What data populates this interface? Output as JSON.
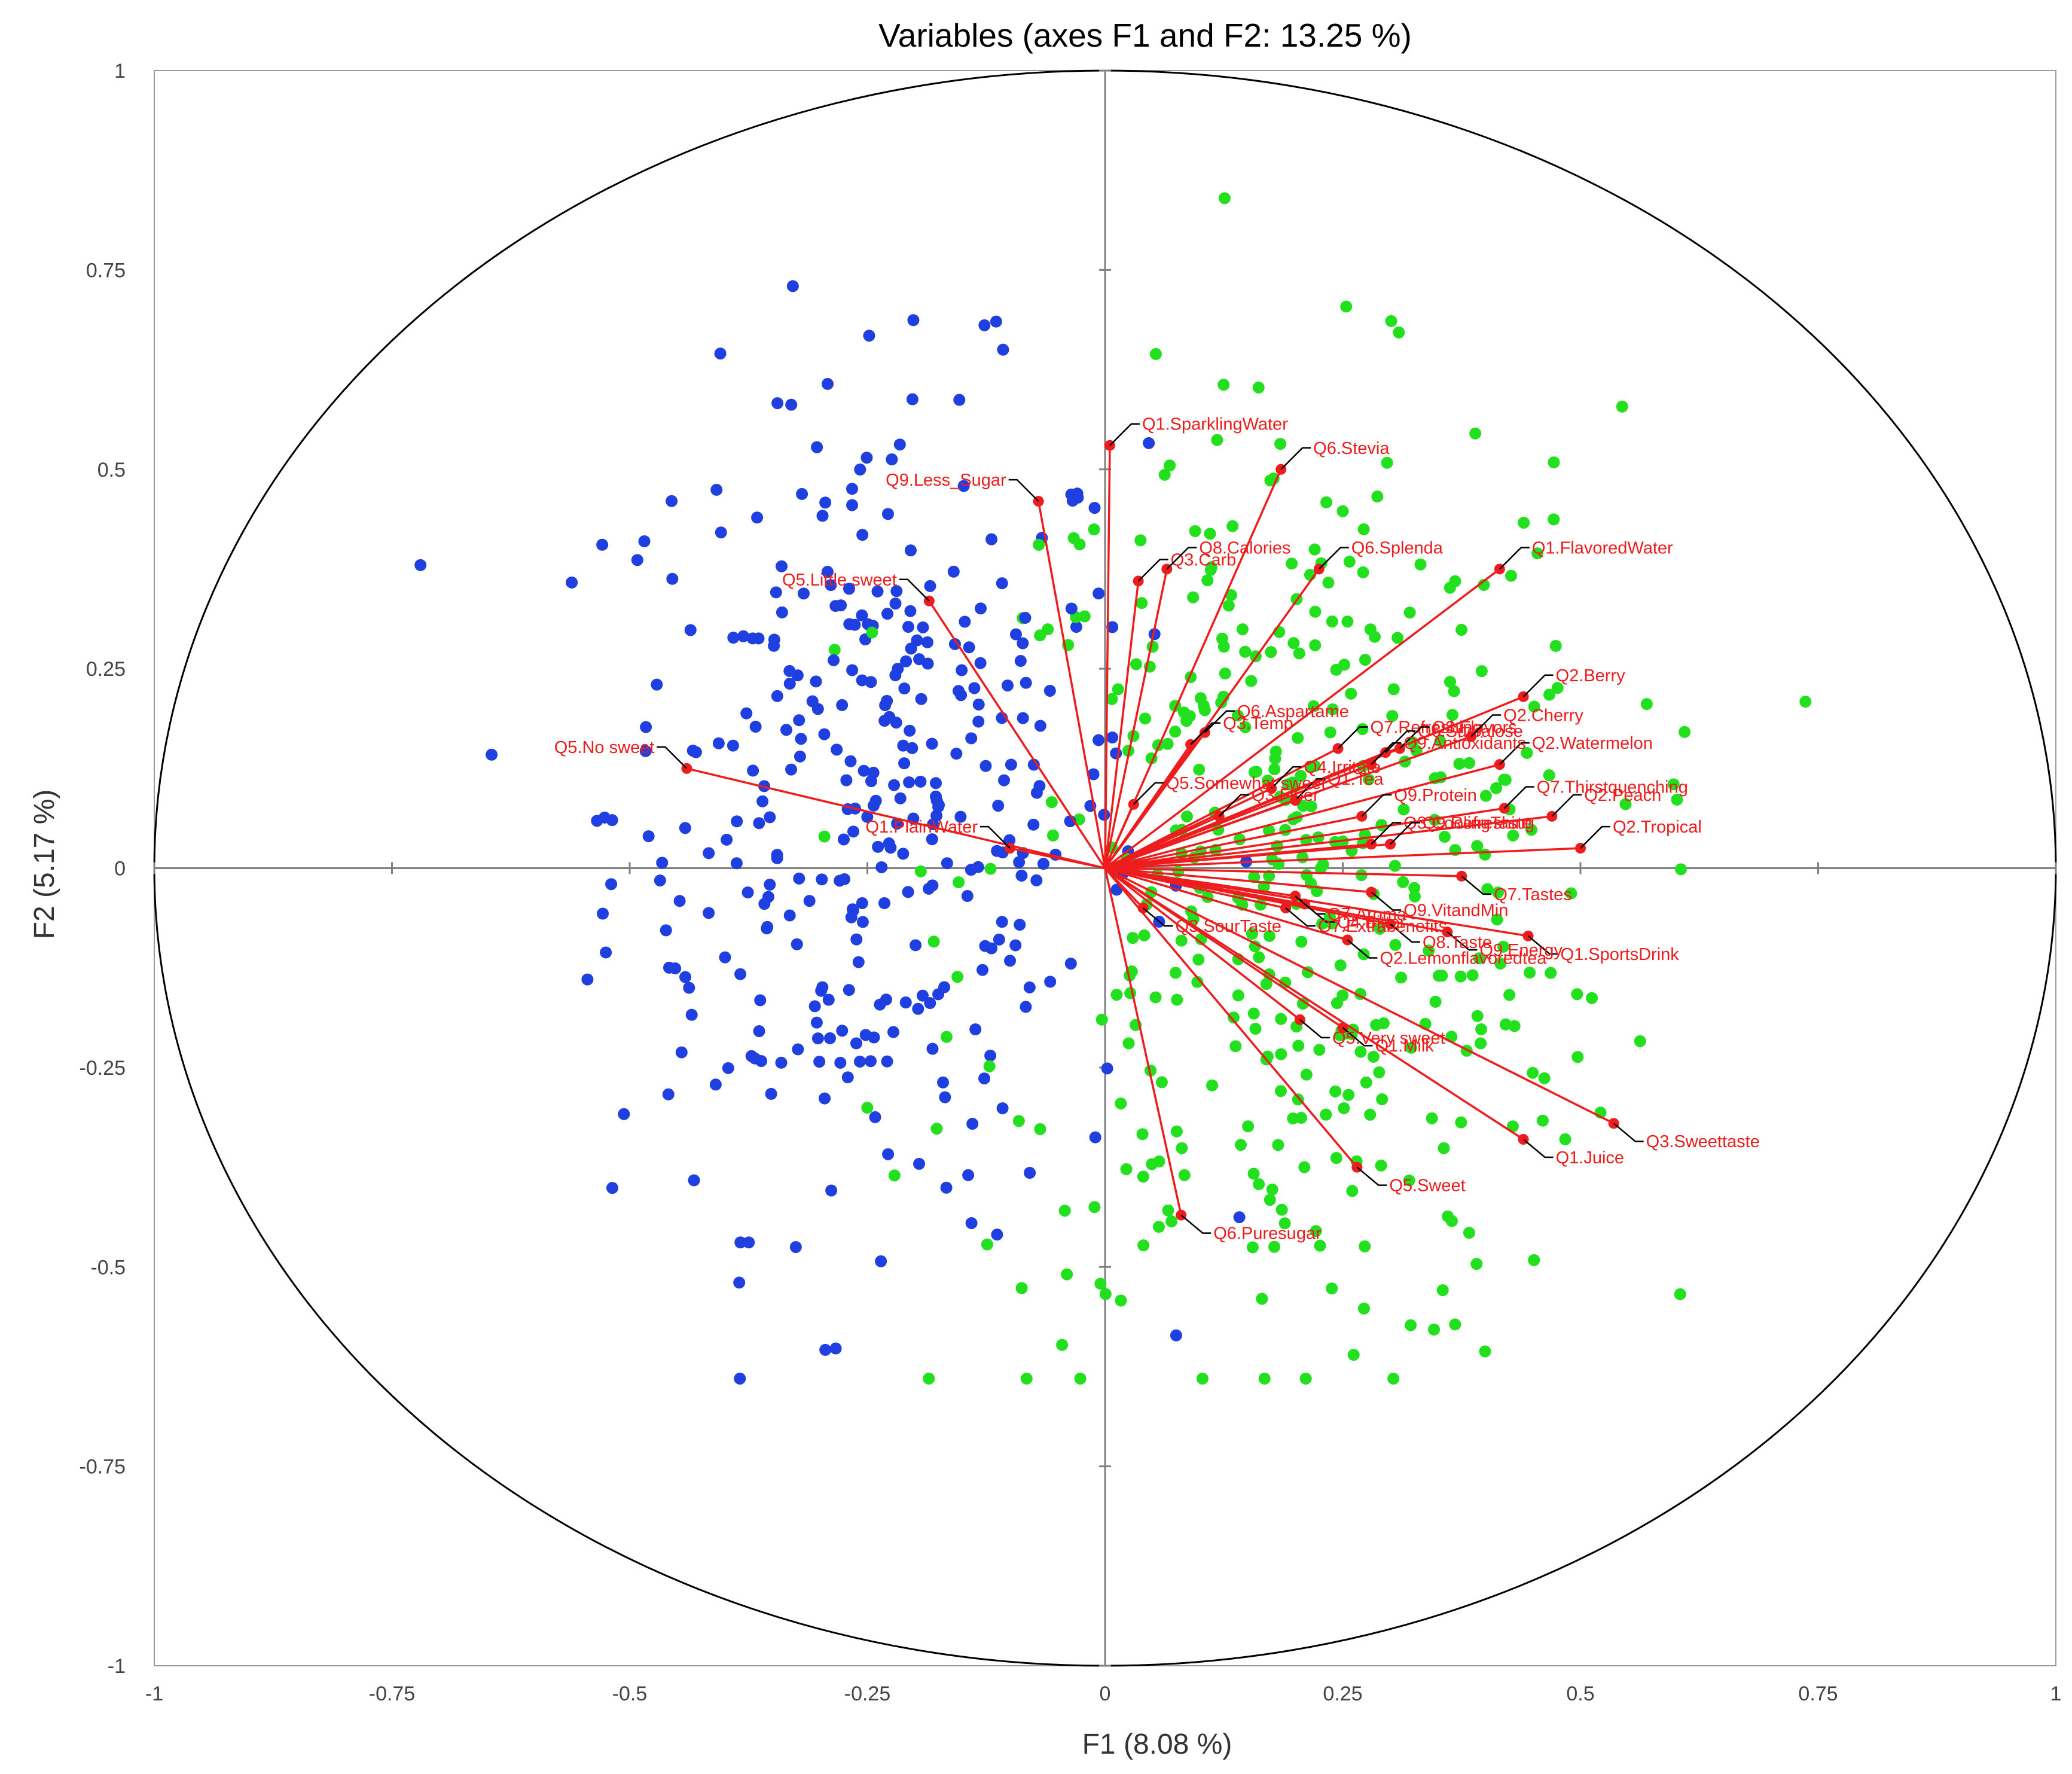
{
  "chart_data": {
    "type": "scatter",
    "title": "Variables (axes F1 and F2: 13.25 %)",
    "xlabel": "F1 (8.08 %)",
    "ylabel": "F2 (5.17 %)",
    "xlim": [
      -1,
      1
    ],
    "ylim": [
      -1,
      1
    ],
    "x_ticks": [
      -1,
      -0.75,
      -0.5,
      -0.25,
      0,
      0.25,
      0.5,
      0.75,
      1
    ],
    "y_ticks": [
      -1,
      -0.75,
      -0.5,
      -0.25,
      0,
      0.25,
      0.5,
      0.75,
      1
    ],
    "tick_labels": {
      "x": [
        "-1",
        "-0.75",
        "-0.5",
        "-0.25",
        "0",
        "0.25",
        "0.5",
        "0.75",
        "1"
      ],
      "y": [
        "-1",
        "-0.75",
        "-0.5",
        "-0.25",
        "0",
        "0.25",
        "0.5",
        "0.75",
        "1"
      ]
    },
    "correlation_circle": true,
    "grid": false,
    "colors": {
      "vectors": "#ee1c1c",
      "labels": "#ee1c1c",
      "observations_group_1": "#1f3fe0",
      "observations_group_2": "#22e01e",
      "axes": "#808080",
      "circle": "#000000",
      "leaders": "#000000"
    },
    "observation_counts": {
      "blue": 360,
      "green": 420
    },
    "variables": [
      {
        "label": "Q5.No sweet",
        "x": -0.44,
        "y": 0.125
      },
      {
        "label": "Q5.Little sweet",
        "x": -0.185,
        "y": 0.335
      },
      {
        "label": "Q1.PlainWater",
        "x": -0.1,
        "y": 0.025
      },
      {
        "label": "Q1.SparklingWater",
        "x": 0.005,
        "y": 0.53
      },
      {
        "label": "Q9.Less_Sugar",
        "x": -0.07,
        "y": 0.46
      },
      {
        "label": "Q3.Carb",
        "x": 0.035,
        "y": 0.36
      },
      {
        "label": "Q8.Calories",
        "x": 0.065,
        "y": 0.375
      },
      {
        "label": "Q6.Stevia",
        "x": 0.185,
        "y": 0.5
      },
      {
        "label": "Q6.Splenda",
        "x": 0.225,
        "y": 0.375
      },
      {
        "label": "Q1.FlavoredWater",
        "x": 0.415,
        "y": 0.375
      },
      {
        "label": "Q7.Refreshing",
        "x": 0.245,
        "y": 0.15
      },
      {
        "label": "Q6.Sucralose",
        "x": 0.295,
        "y": 0.145
      },
      {
        "label": "Q6.Aspartame",
        "x": 0.105,
        "y": 0.17
      },
      {
        "label": "Q3.Temp",
        "x": 0.09,
        "y": 0.155
      },
      {
        "label": "Q4.Irritate",
        "x": 0.175,
        "y": 0.1
      },
      {
        "label": "Q3.Flavors",
        "x": 0.31,
        "y": 0.15
      },
      {
        "label": "Q2.Cherry",
        "x": 0.385,
        "y": 0.165
      },
      {
        "label": "Q2.Berry",
        "x": 0.44,
        "y": 0.215
      },
      {
        "label": "Q1.Tea",
        "x": 0.2,
        "y": 0.085
      },
      {
        "label": "Q5.Somewhat sweet",
        "x": 0.03,
        "y": 0.08
      },
      {
        "label": "Q3.Fiber",
        "x": 0.12,
        "y": 0.065
      },
      {
        "label": "Q2.Watermelon",
        "x": 0.415,
        "y": 0.13
      },
      {
        "label": "Q9.Antioxidants",
        "x": 0.28,
        "y": 0.13
      },
      {
        "label": "Q9.Protein",
        "x": 0.27,
        "y": 0.065
      },
      {
        "label": "Q2.Peach",
        "x": 0.47,
        "y": 0.065
      },
      {
        "label": "Q3.CoolingTaste",
        "x": 0.28,
        "y": 0.03
      },
      {
        "label": "Q7.Thirstquenching",
        "x": 0.42,
        "y": 0.075
      },
      {
        "label": "Q9.Refreshing",
        "x": 0.3,
        "y": 0.03
      },
      {
        "label": "Q2.Tropical",
        "x": 0.5,
        "y": 0.025
      },
      {
        "label": "Q7.Tastes",
        "x": 0.375,
        "y": -0.01
      },
      {
        "label": "Q9.VitandMin",
        "x": 0.28,
        "y": -0.03
      },
      {
        "label": "Q4.Bitter",
        "x": 0.21,
        "y": -0.045
      },
      {
        "label": "Q1.SportsDrink",
        "x": 0.445,
        "y": -0.085
      },
      {
        "label": "Q9.Energy",
        "x": 0.36,
        "y": -0.08
      },
      {
        "label": "Q8.Taste",
        "x": 0.3,
        "y": -0.07
      },
      {
        "label": "Q3.SourTaste",
        "x": 0.04,
        "y": -0.05
      },
      {
        "label": "Q7.Extrabenefits",
        "x": 0.19,
        "y": -0.05
      },
      {
        "label": "Q7.Aroma",
        "x": 0.2,
        "y": -0.035
      },
      {
        "label": "Q2.Lemonflavoredtea",
        "x": 0.255,
        "y": -0.09
      },
      {
        "label": "Q1.Milk",
        "x": 0.25,
        "y": -0.2
      },
      {
        "label": "Q5.Very sweet",
        "x": 0.205,
        "y": -0.19
      },
      {
        "label": "Q3.Sweettaste",
        "x": 0.535,
        "y": -0.32
      },
      {
        "label": "Q1.Juice",
        "x": 0.44,
        "y": -0.34
      },
      {
        "label": "Q5.Sweet",
        "x": 0.265,
        "y": -0.375
      },
      {
        "label": "Q6.Puresugar",
        "x": 0.08,
        "y": -0.435
      }
    ]
  }
}
